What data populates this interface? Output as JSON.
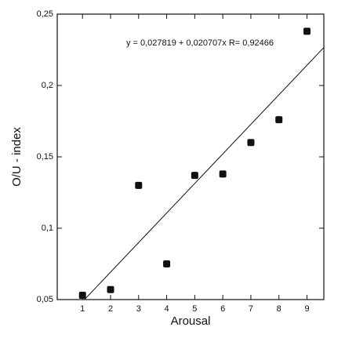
{
  "chart_data": {
    "type": "scatter",
    "x_label": "Arousal",
    "y_label": "O/U - index",
    "x": [
      1,
      2,
      3,
      4,
      5,
      6,
      7,
      8,
      9
    ],
    "values": [
      0.053,
      0.057,
      0.13,
      0.075,
      0.137,
      0.138,
      0.16,
      0.176,
      0.238
    ],
    "color": "#111111",
    "xlim": [
      0.1,
      9.6
    ],
    "ylim": [
      0.05,
      0.25
    ],
    "xticks": [
      1,
      2,
      3,
      4,
      5,
      6,
      7,
      8,
      9
    ],
    "yticks": [
      {
        "value": 0.05,
        "label": "0,05"
      },
      {
        "value": 0.1,
        "label": "0,1"
      },
      {
        "value": 0.15,
        "label": "0,15"
      },
      {
        "value": 0.2,
        "label": "0,2"
      },
      {
        "value": 0.25,
        "label": "0,25"
      }
    ],
    "grid": false,
    "regression": {
      "intercept": 0.027819,
      "slope": 0.020707,
      "label": "y = 0,027819 + 0,020707x   R= 0,92466"
    }
  }
}
